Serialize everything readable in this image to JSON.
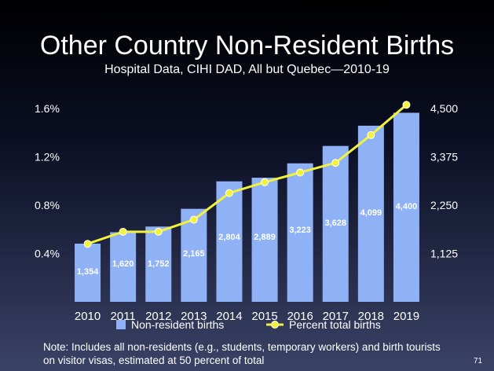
{
  "title": "Other Country Non-Resident Births",
  "subtitle": "Hospital Data, CIHI DAD, All but Quebec—2010-19",
  "note": "Note:  Includes all non-residents (e.g., students, temporary workers) and birth tourists on visitor visas, estimated at 50 percent of total",
  "slide_number": "71",
  "colors": {
    "bar": "#8fb1f5",
    "line": "#f2f23a",
    "text": "#ffffff"
  },
  "chart_data": {
    "type": "bar+line",
    "categories": [
      "2010",
      "2011",
      "2012",
      "2013",
      "2014",
      "2015",
      "2016",
      "2017",
      "2018",
      "2019"
    ],
    "series": [
      {
        "name": "Non-resident births",
        "type": "bar",
        "axis": "right",
        "values": [
          1354,
          1620,
          1752,
          2165,
          2804,
          2889,
          3223,
          3628,
          4099,
          4400
        ],
        "labels": [
          "1,354",
          "1,620",
          "1,752",
          "2,165",
          "2,804",
          "2,889",
          "3,223",
          "3,628",
          "4,099",
          "4,400"
        ]
      },
      {
        "name": "Percent total births",
        "type": "line",
        "axis": "left",
        "values": [
          0.48,
          0.58,
          0.58,
          0.68,
          0.9,
          0.99,
          1.07,
          1.15,
          1.38,
          1.63
        ]
      }
    ],
    "left_axis": {
      "min": 0,
      "max": 1.6,
      "ticks": [
        0.4,
        0.8,
        1.2,
        1.6
      ],
      "tick_labels": [
        "0.4%",
        "0.8%",
        "1.2%",
        "1.6%"
      ]
    },
    "right_axis": {
      "min": 0,
      "max": 4500,
      "ticks": [
        1125,
        2250,
        3375,
        4500
      ],
      "tick_labels": [
        "1,125",
        "2,250",
        "3,375",
        "4,500"
      ]
    },
    "legend": [
      "Non-resident births",
      "Percent total births"
    ],
    "legend_position": "bottom"
  }
}
